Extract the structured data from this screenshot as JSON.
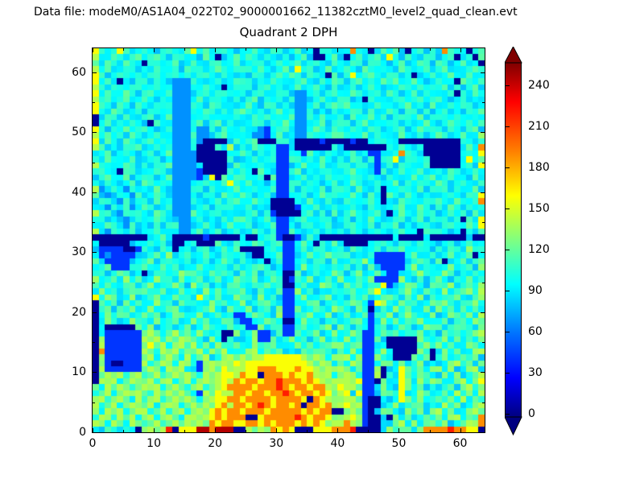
{
  "header": {
    "text": "Data file: modeM0/AS1A04_022T02_9000001662_11382cztM0_level2_quad_clean.evt"
  },
  "title": "Quadrant 2 DPH",
  "colors": {
    "background": "#ffffff",
    "axes": "#000000",
    "text": "#000000",
    "colorbar_top_arrow": "#800000",
    "colorbar_bottom_arrow": "#000080"
  },
  "chart_data": {
    "type": "heatmap",
    "title": "Quadrant 2 DPH",
    "xlabel": "",
    "ylabel": "",
    "xlim": [
      0,
      64
    ],
    "ylim": [
      0,
      64
    ],
    "x_ticks": [
      0,
      10,
      20,
      30,
      40,
      50,
      60
    ],
    "y_ticks": [
      0,
      10,
      20,
      30,
      40,
      50,
      60
    ],
    "minor_tick_step": 5,
    "grid": false,
    "colormap": "jet",
    "colorbar": {
      "ticks": [
        0,
        30,
        60,
        90,
        120,
        150,
        180,
        210,
        240
      ],
      "vmin": 0,
      "vmax": 255,
      "extend": "both",
      "position": "right"
    },
    "value_palette": {
      "B": 5,
      "b": 45,
      "u": 68,
      ",": 88,
      ".": 100,
      ":": 112,
      ";": 126,
      "g": 140,
      "y": 158,
      "o": 188,
      "r": 216,
      "d": 242
    },
    "noise_amplitude": 9,
    "grid_rows_top_to_bottom": [
      "y:,.y:,.:.,.:.,:y.:,.:.,,.:.,:.,.:,.B:.,.,o.,B,:.:,B.:,.,o:.,B.:",
      "g.,:.,.:,.:.,.:,.,:.B,.:.:.,:.,.,.:,BB.:,B.:,.:,y.,:.,.:,.:B,.B:",
      ";,:.,:.,B.:,.:,.:.,.:,.:,.:.,.:,.:,.:.,:.,:.,.:.,.:,.:.,:.,.:,.B",
      "g.:,.:.,.,:.,.,:.:,.:.,.:.,:.,.:,y.:,.:,.:.,:.,..,:.,.:,.:,.,.:.",
      "y:,.:.,:,.:,.:,.,.:.,:.,.,:.,.:.:.,:.,B:,.y,.:.,:.,.B,.:,.:,.:.,",
      "y.:,B.,:.,:.,uuu:.,.:,.:.:,.,:.,,.:.,:.:.,.:,.,:.:,.:.,,:,.B:.,:",
      "g.,:.,:.,.:,.uuu.,:.,B.::.,.:,.,.:,.:.,:,.:,.:.,.,:.,:.:.:,.,.:,",
      "y,:.,:.,.:,.:uuu,.:,.:.,.,.:,.:.,uu.:,.:.,:.,.:,:.,.:,.,.,:B.,:.",
      "g.:,.:,.:.,.,uuu.:,.:.,:,.:,.,:,.uu,.:.,:.,.B:.,,.:,.:,::.,.:,.,",
      "y:.,:.,:.,:.:uuu:.,:.,.,.:.,:.,.,uu.:,.:.:,.,.:..,.:,.,:,.:,.:,.",
      "y.,:.,.:,:.,.uuu.,:.,:.::.,.,.:,.uu:,.,:,.:.,:,.:.,:.,.,.:,.,:.:",
      "B,:.,:.,.:,.:uuu,.:.,.,:.,:.:,.,:uu.,:.,.,:,.:.:,.:.,:,.:.,:.,.,",
      "B.:,.,:.,B:.,uuu.:,.:,.,,.:.,:.:.uu,.:,.:.,.:,.,.:,.,.:,,.:.,:.:",
      "y.,:.:,.:.,.:uuu.uu.,:.,:.,ub,.:,uu.:.,:.,:.,:.,,.:,.:.:.,:.,.:,",
      "g.:,.,:.,.:,.uuu:uu,.:,..,uub,:,,uu:.,.::.,.:,.,.,:.,:,.:.,.:,.;",
      "y,:.,:.,.:,.,uuu.uBBBB,:,.:BBB.:,BBBBbBBBBbBB,.:,.BBBBBBBBBB:.,:",
      "g:,.,:.:,.:,.uuu.BBB:,g,.,:.,:bb,BBBBBB:,BBBBBBB.,:.,.BBBBBB,:.o",
      ",.:,.:.,.:,.:uuuuBBBBB,.:.,.,:bb.,b:.,:,,.:,.bb,,.o:.,BBBBBB.:,y",
      ".,:.,.:,,.:,.uuuuBBBBB.,,.:,.:bb:.,.,:.,.,:.,.b:.y,.:,.BBBBB,y.:",
      "g:.,.:.,.,:.:uuuu,BBBB,:.,.:,.bb,.:,.:,.:.,.:,b,.,:.,.:BBBBB.:,y",
      ".:,.B:.,,.:.,uuuubBBBB:,.,B:.,bb.:,.,.:,,.:,.,b:,.:,.:,..,:.,.:,",
      ",.:,.:,..:,.:uuuub,yB:.::.,.B:bb,.:,.,:..,:.,:.,:.,.:,.:,.:,.,:.",
      ".,:.,.:,:.,:.uuu,.:.,:y..:,.,.bb:.,:.,.:,.:.,.:,.:,.,:.,:.,.:.,:",
      "gu,.,u:,.,:.,uuu:.,:.,.:,.:,.:bb.,:.,:,.:.,:.,.B,.:.,:,..:,.,.:,",
      ":,u,.,u:,.:.,uuu.,:.,:.,:.,.:,bb,.:,.:.:.,:.,:,B:.,:.,.,,.:.,:.y",
      ",:.,u:,..,:,.uuu:.,.:,.:,.:.,BBBB.,:.,:,,:.,.:.B.,:.,.:::.,:.,.o",
      ".,u.,:u,:.,.:uuu,.:,.:.,.:,.,BBBBb,.:,.:.,:.,:.,,.:,.:.,.,:.,:.:",
      "g.:,u:.:.,:.,uuu:.,.:,.,,.:,.bBBBB.:,.,:,.:.,.:,B,:.,:.:,.:,.,:,",
      ".:,.,u,.,.:.,,uu.:,.,:.::.,.:,bb,.:,.:.,.:,.,:.,,.:,.:,..:,.B:,y",
      ",.:.,u:,.,:,.:uu,.:.,.:,.:,.,:bb.,:.,.:,,.:,.:,..:,.,.:,,.:.,:.y",
      "g,u:.,:,,.:.,.uu.:,.:,.:,.:.,.bb:.,.:,.,.,:.,.:,,.:,.B:.:.,.B.,:",
      "BBBBBBBBB,.:,BBBBBbBBBBB,BB,.:bBBb,:,BBBBBBBBBBBB,BBBB.BBBBBB,BB",
      ",BBBBB,..:,.,BB,.BBB:.,:,.:.,.:bb,:.B.,:,BBBB,.:.,:.,:.,,.:,.:,.",
      ",bbbbBBb:.,:.B,.,.:,.:.;BBBB.:,bb.:,.:,..,:.,.:,:.;,.:.,.,:.,;.:",
      ".bubbbb,,.:.;,.:.,:.,:.,.,BB,.:bb,.:,.;:.:,.,:bbbbb.:,.:,.:,.:B,",
      ":,bbbb,..;,.:.,:,.:,.;.,:.,.B,:bb.:,.:,;,.:.;,bbbbb,.:.,:B,.;,.:",
      ",.:bbb.::.,;.:,..;,.:.,:,.:;.,.bb,;.:,.:.:,.,;,bbbb.;,:.,.;,.:,;",
      ".:,.;:,.B,.:,.;::.,;.:.,;.:,.:,BB;,.:,.;:,.;,.:,bb,.:;.,.;:,.,:.",
      ";,.:,;.:,.;:.,;..:,.;,.;:.;,.:.Bb:.;,.:,;.,:.;bbbb;.,:,.;.,:.;,:",
      ":.;,.:;,.;,.:;.,;.:,.,:;.,:.;.:BB.:,.;:.,;.:,.:yb,.;:.,;:.;,.:.;",
      ",;.:,.;:;.:;,.:,.,;.:,.:;.,:.,;bb;.:,.,:.:;,.;y,,.:;.,:..;,.:;.g",
      "y.;:,.;,.:;.,;.:,y:.;,.;:.,;.:,bb.;,.:;,.,:.;,.:;.,:.;,:,.:;.,:;",
      "B;.:,;.:,.;:.,;.:.,;.:,.;,.:;.,bb,.:;,.:,.;:,byg.,;.:,.;:;.,.:;.",
      "B.;,:.;,.;,.:;.,,.:;.,;..;,.:,;bb;,.;.,;:.,;.B,:,;.:,.;,;.:,;.:,",
      "B,;.:;,.;.:,.;:..;,.:,.bb.;:.,;bb.:;,.;,.;,.:b.:;,.;:.,;,.;:.;,g",
      "B.;:,.;:.,;.:;,.;.:,.;:,bb,.;:.BB,;.:,.:,.:;.b,;.;,:.;,..;,.:,;:",
      "B,BBBBB;.;,.:,.;,.;:.,:..bb;,.:bb.;,.:;,;.,:.b.:,.;:,.;:;,.;:.,;",
      "B,bbbbbb;g;.;g:;.;:,.BB;,.;bb,:bb;.:;,.;,.;:bb.;.;,.:;,.,;.:,.;g",
      "B;bbbbbbg;g.;:g;;.,;.B:,,.;bb;,:;.:,.;,..;,:bb;,BBBBB;.,.;,;.:,;",
      "Bgbbbbbb;y;g.;g:g.;,;.:;.,;.:;.,,;.;,.:;;.:;bb,.BBBBB.;:;.:,.;:.",
      "Bobbbbbbg;.g;g.;;g.;:g,..;g.;.:,.,;.:;.,:.;,bb.;.BBBB;.B,;.;,.;g",
      "B;bbbbbb;g.;g;.g.;g,.;g;g;ggyyyyyyg;g;.;;g.;bb;.,BBB;.;B.;,.;:;,",
      "B;bBBbbbg.;g;.g;.b;g;g;ygyyyyyyyyyyg;g;,;.g;bb.;;.;,.;,.,.;g.;,;",
      "Bgbbbbbb;g;.g;g.,b;g;y;ggyyoooyyyoyyg;g;g;.;bb;B,.y;.;,;;.;,.;g,",
      "B;g;g.;g.;g.;g;g;.g;gyygoyyBoooyoyyog;g.;g;.bbgB.,y;.;:.,;.;,.;g",
      "Bg;g.;g;;g.;g.;g.;g;gygoyooyooroooyoyg;ggg;ybbB;,.y;,;.;;,.;g.;y",
      ";.g;g;.;g;g.;g;.;g.;gyooooyoooroyooyoog;ygg;bb,;.,y;.;,.,.;,;g.;",
      ".;g.;g;g;.g;g;g;,bg;yggooyooyooroyooyoy;gy,ybb,;;.y,.;:,.;,g.;,g",
      ";g.;g;.g.;g.;g;g;.;gyyooyooooyooooyBoyg;;gg;bBB.,.y;.;,:;.;,g.;:",
      "g.;g.;g;;g.;g;.;g;g;yogooyoroyooyoBooyo;gy;gbBB,.;,.;:,.,g.;,.;g",
      ";.g;g.;gg.;g.;g.;g;yoyooyoooyoooooyoyooBB;g;bB,;;.,;.;,;g.;,.;g;",
      ".g;.g;g.;g.;g;.gg;gyoyoooBByoooooroyooy;;gy;bBB,B;.;,.;:;.;g.;:o",
      "g;.g;.g;.;g.;g;g;g;oyooyyooyoyoooyoyoy;ggog;bBB,,;g.;,:;.;,.;g;o",
      ".,:.,:,B;g;grByyyddodddBBg;g;oyoyBBByyyooorBBBB,;.:;,;oooorooyyB"
    ]
  }
}
